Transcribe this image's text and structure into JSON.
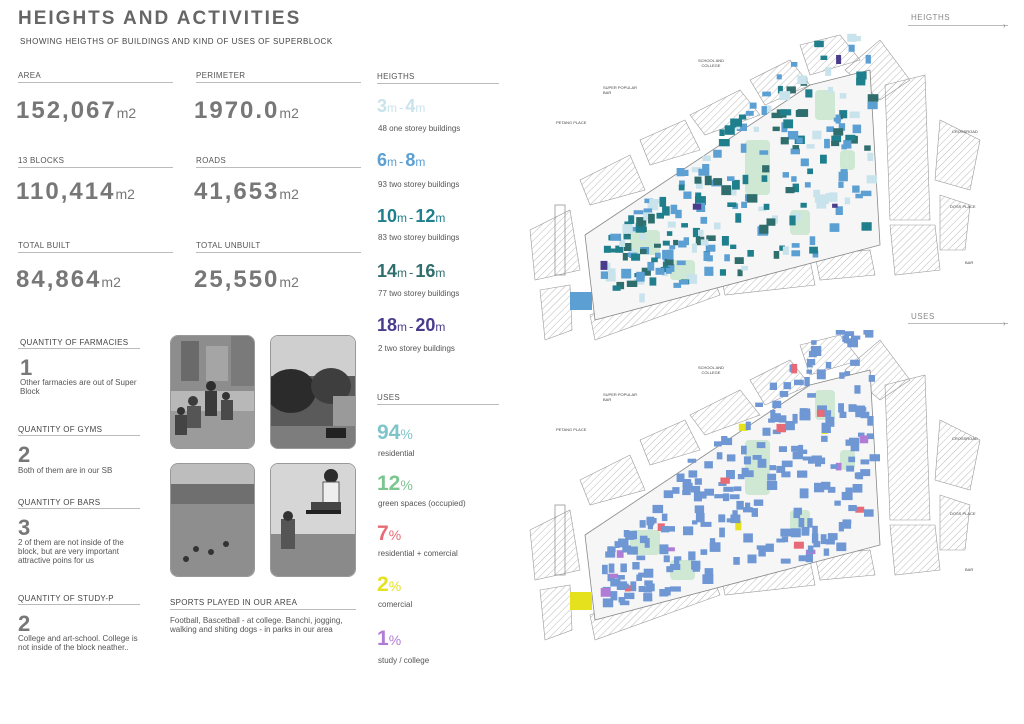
{
  "header": {
    "title": "HEIGHTS AND ACTIVITIES",
    "subtitle": "SHOWING  HEIGTHS OF BUILDINGS AND KIND OF USES OF SUPERBLOCK"
  },
  "stats": {
    "area_label": "AREA",
    "area_value": "152,067",
    "perimeter_label": "PERIMETER",
    "perimeter_value": "1970.0",
    "blocks_label": "13 BLOCKS",
    "blocks_value": "110,414",
    "roads_label": "ROADS",
    "roads_value": "41,653",
    "built_label": "TOTAL BUILT",
    "built_value": "84,864",
    "unbuilt_label": "TOTAL UNBUILT",
    "unbuilt_value": "25,550",
    "unit": "m2"
  },
  "quantities": [
    {
      "head": "QUANTITY OF FARMACIES",
      "num": "1",
      "text": "Other farmacies are out of Super Block"
    },
    {
      "head": "QUANTITY OF GYMS",
      "num": "2",
      "text": "Both of them are in our SB"
    },
    {
      "head": "QUANTITY OF BARS",
      "num": "3",
      "text": "2 of them are not inside of the block, but are very important attractive poins for us"
    },
    {
      "head": "QUANTITY OF STUDY-P",
      "num": "2",
      "text": "College and art-school. College is not inside of the block neather.."
    }
  ],
  "sports": {
    "head": "SPORTS PLAYED IN OUR AREA",
    "text": "Football, Bascetball - at college. Banchi, jogging, walking and shiting dogs - in parks in our area"
  },
  "heights": {
    "head": "HEIGTHS",
    "unit": "m",
    "dash": "-",
    "items": [
      {
        "from": "3",
        "to": "4",
        "desc": "48 one storey buildings",
        "color": "#c9e3ec"
      },
      {
        "from": "6",
        "to": "8",
        "desc": "93 two storey buildings",
        "color": "#5b9fd3"
      },
      {
        "from": "10",
        "to": "12",
        "desc": "83 two storey buildings",
        "color": "#1f7f8c"
      },
      {
        "from": "14",
        "to": "16",
        "desc": "77 two storey buildings",
        "color": "#2f6e6c"
      },
      {
        "from": "18",
        "to": "20",
        "desc": "2 two storey buildings",
        "color": "#4a3c8c"
      }
    ]
  },
  "uses": {
    "head": "USES",
    "pct_sign": "%",
    "items": [
      {
        "value": "94",
        "desc": "residential",
        "color": "#7fc4c9"
      },
      {
        "value": "12",
        "desc": "green spaces (occupied)",
        "color": "#7cc58f"
      },
      {
        "value": "7",
        "desc": "residential + comercial",
        "color": "#e86a76"
      },
      {
        "value": "2",
        "desc": "comercial",
        "color": "#e5e21d"
      },
      {
        "value": "1",
        "desc": "study / college",
        "color": "#b07cd6"
      }
    ]
  },
  "maps": {
    "heights_label": "HEIGTHS",
    "uses_label": "USES",
    "notes": {
      "school": "SCHOOL AND COLLEGE",
      "popular_bar": "SUPER POPULAR BAR",
      "petang": "PETANG PLACE",
      "crossroad": "CROSSROAD",
      "doss": "DOSS PLACE",
      "bar": "BAR"
    }
  },
  "colors": {
    "residential_fill": "#6e97d4",
    "green_fill": "#cfe8d4",
    "hatch": "#9a9a9a"
  },
  "icons": [
    "arrow-right-icon"
  ]
}
